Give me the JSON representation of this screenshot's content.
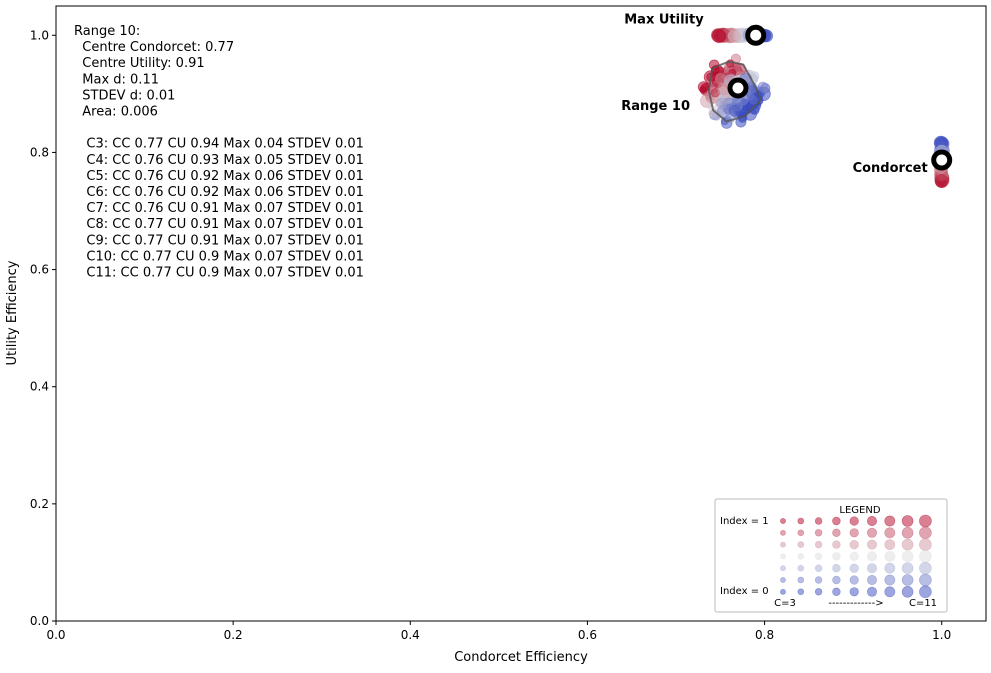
{
  "chart_data": {
    "type": "scatter",
    "xlabel": "Condorcet Efficiency",
    "ylabel": "Utility Efficiency",
    "xlim": [
      0,
      1.05
    ],
    "ylim": [
      0,
      1.05
    ],
    "x_ticks": [
      "0.0",
      "0.2",
      "0.4",
      "0.6",
      "0.8",
      "1.0"
    ],
    "y_ticks": [
      "0.0",
      "0.2",
      "0.4",
      "0.6",
      "0.8",
      "1.0"
    ],
    "grid": false,
    "info_lines": [
      "Range 10:",
      "  Centre Condorcet: 0.77",
      "  Centre Utility: 0.91",
      "  Max d: 0.11",
      "  STDEV d: 0.01",
      "  Area: 0.006",
      "",
      "   C3: CC 0.77 CU 0.94 Max 0.04 STDEV 0.01",
      "   C4: CC 0.76 CU 0.93 Max 0.05 STDEV 0.01",
      "   C5: CC 0.76 CU 0.92 Max 0.06 STDEV 0.01",
      "   C6: CC 0.76 CU 0.92 Max 0.06 STDEV 0.01",
      "   C7: CC 0.76 CU 0.91 Max 0.07 STDEV 0.01",
      "   C8: CC 0.77 CU 0.91 Max 0.07 STDEV 0.01",
      "   C9: CC 0.77 CU 0.91 Max 0.07 STDEV 0.01",
      "   C10: CC 0.77 CU 0.9 Max 0.07 STDEV 0.01",
      "   C11: CC 0.77 CU 0.9 Max 0.07 STDEV 0.01"
    ],
    "markers": [
      {
        "label": "Max Utility",
        "x": 0.79,
        "y": 1.0
      },
      {
        "label": "Range 10",
        "x": 0.77,
        "y": 0.91
      },
      {
        "label": "Condorcet",
        "x": 1.0,
        "y": 0.787
      }
    ],
    "hull_polygon": [
      [
        0.741,
        0.944
      ],
      [
        0.76,
        0.955
      ],
      [
        0.776,
        0.95
      ],
      [
        0.788,
        0.917
      ],
      [
        0.796,
        0.89
      ],
      [
        0.778,
        0.862
      ],
      [
        0.757,
        0.853
      ],
      [
        0.742,
        0.872
      ],
      [
        0.737,
        0.905
      ]
    ],
    "clusters": [
      {
        "name": "max-utility",
        "cx": 0.78,
        "cy": 1.0,
        "sx": 0.018,
        "sy": 0.0008
      },
      {
        "name": "range-10",
        "cx": 0.765,
        "cy": 0.905,
        "sx": 0.014,
        "sy": 0.022
      },
      {
        "name": "condorcet",
        "cx": 1.0,
        "cy": 0.785,
        "sx": 0.0008,
        "sy": 0.016
      }
    ],
    "legend": {
      "title": "LEGEND",
      "top_label": "Index = 1",
      "bottom_label": "Index = 0",
      "bottom_left": "C=3",
      "bottom_mid": "------------->",
      "bottom_right": "C=11",
      "placement": "lower right",
      "rows": 7,
      "cols": 9
    },
    "colormap": "coolwarm",
    "colors": {
      "low": "#3b4cc0",
      "mid": "#dddddd",
      "high": "#b40426"
    }
  }
}
